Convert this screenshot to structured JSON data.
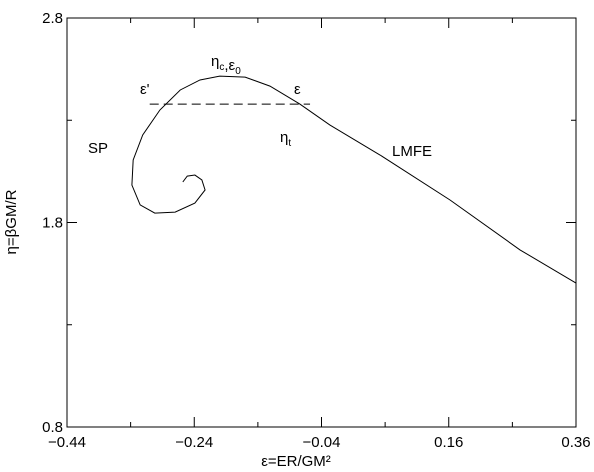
{
  "chart_data": {
    "type": "line",
    "x_label": "ε=ER/GM²",
    "y_label": "η=βGM/R",
    "series": [
      {
        "color": "#000000",
        "x": [
          -0.258,
          -0.251,
          -0.239,
          -0.228,
          -0.223,
          -0.239,
          -0.27,
          -0.302,
          -0.325,
          -0.338,
          -0.336,
          -0.321,
          -0.294,
          -0.262,
          -0.231,
          -0.2,
          -0.16,
          -0.121,
          -0.074,
          -0.027,
          0.052,
          0.162,
          0.272,
          0.36
        ],
        "values": [
          1.998,
          2.027,
          2.032,
          2.008,
          1.959,
          1.895,
          1.851,
          1.846,
          1.886,
          1.983,
          2.106,
          2.228,
          2.35,
          2.448,
          2.497,
          2.516,
          2.511,
          2.467,
          2.379,
          2.277,
          2.13,
          1.91,
          1.666,
          1.504
        ]
      }
    ],
    "reference_line": {
      "x": [
        -0.31,
        -0.058
      ],
      "y": 2.379,
      "color": "#000000",
      "dashed": true
    },
    "xlim": [
      -0.44,
      0.36
    ],
    "ylim": [
      0.8,
      2.8
    ],
    "xticks": [
      {
        "value": -0.44,
        "label": "−0.44"
      },
      {
        "value": -0.24,
        "label": "−0.24"
      },
      {
        "value": -0.04,
        "label": "−0.04"
      },
      0.16,
      0.36
    ],
    "yticks": [
      0.8,
      1.8,
      2.8
    ],
    "xminorticks": [
      -0.34,
      -0.14,
      0.06,
      0.26
    ],
    "yminorticks": [
      1.3,
      2.3
    ],
    "annotations": [
      [
        {
          "text": "ε'"
        }
      ],
      [
        {
          "text": "ε"
        }
      ],
      [
        {
          "text": "η",
          "sub": "c"
        },
        {
          "text": ",ε",
          "sub": "0"
        }
      ],
      [
        {
          "text": "η",
          "sub": "t"
        }
      ],
      [
        {
          "text": "SP"
        }
      ],
      [
        {
          "text": "LMFE"
        }
      ]
    ]
  }
}
